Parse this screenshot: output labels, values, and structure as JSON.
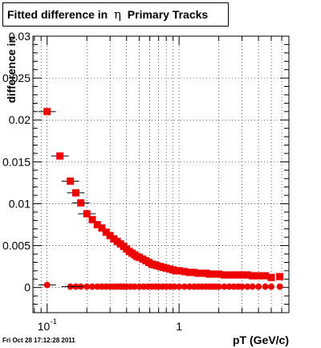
{
  "title": {
    "prefix": "Fitted difference in",
    "symbol": "η",
    "suffix": "Primary Tracks"
  },
  "footer_timestamp": "Fri Oct 28 17:12:28 2011",
  "colors": {
    "marker": "#ee0000",
    "frame": "#000000",
    "grid": "#000000"
  },
  "chart_data": {
    "type": "scatter",
    "xscale": "log",
    "xlim": [
      0.078,
      6.8
    ],
    "ylim": [
      -0.003,
      0.03
    ],
    "xlabel": "pT (GeV/c)",
    "ylabel": "difference in",
    "grid": true,
    "x_ticks": [
      {
        "value": 0.1,
        "base": "10",
        "exp": "-1"
      },
      {
        "value": 1,
        "label": "1"
      }
    ],
    "y_ticks": [
      {
        "value": 0,
        "label": "0"
      },
      {
        "value": 0.005,
        "label": "0.005"
      },
      {
        "value": 0.01,
        "label": "0.01"
      },
      {
        "value": 0.015,
        "label": "0.015"
      },
      {
        "value": 0.02,
        "label": "0.02"
      },
      {
        "value": 0.025,
        "label": "0.025"
      },
      {
        "value": 0.03,
        "label": "0.03"
      }
    ],
    "series": [
      {
        "marker": "square",
        "x": [
          0.1,
          0.125,
          0.15,
          0.165,
          0.18,
          0.2,
          0.22,
          0.24,
          0.26,
          0.28,
          0.3,
          0.32,
          0.34,
          0.36,
          0.38,
          0.4,
          0.42,
          0.44,
          0.46,
          0.48,
          0.5,
          0.53,
          0.56,
          0.59,
          0.62,
          0.65,
          0.68,
          0.72,
          0.76,
          0.8,
          0.85,
          0.9,
          0.95,
          1.0,
          1.1,
          1.2,
          1.3,
          1.4,
          1.5,
          1.6,
          1.7,
          1.8,
          1.9,
          2.0,
          2.2,
          2.4,
          2.6,
          2.8,
          3.0,
          3.3,
          3.6,
          4.0,
          4.5,
          5.0,
          5.8
        ],
        "y": [
          0.021,
          0.0157,
          0.0127,
          0.0113,
          0.0101,
          0.0088,
          0.0081,
          0.0075,
          0.0071,
          0.0066,
          0.0062,
          0.0058,
          0.0055,
          0.0052,
          0.0049,
          0.0046,
          0.0043,
          0.0041,
          0.0039,
          0.0037,
          0.0036,
          0.0034,
          0.0032,
          0.003,
          0.0028,
          0.0027,
          0.0026,
          0.0025,
          0.0024,
          0.0023,
          0.0022,
          0.0021,
          0.002,
          0.002,
          0.0019,
          0.0018,
          0.0018,
          0.0017,
          0.0017,
          0.0017,
          0.0016,
          0.0016,
          0.0016,
          0.0016,
          0.0015,
          0.0015,
          0.0015,
          0.0015,
          0.0015,
          0.0015,
          0.0014,
          0.0014,
          0.0014,
          0.0012,
          0.0013
        ]
      },
      {
        "marker": "circle",
        "x": [
          0.1,
          0.15,
          0.165,
          0.18,
          0.2,
          0.22,
          0.24,
          0.26,
          0.28,
          0.3,
          0.32,
          0.34,
          0.36,
          0.38,
          0.4,
          0.43,
          0.46,
          0.5,
          0.54,
          0.58,
          0.62,
          0.66,
          0.7,
          0.75,
          0.8,
          0.86,
          0.92,
          1.0,
          1.1,
          1.2,
          1.3,
          1.4,
          1.5,
          1.6,
          1.7,
          1.8,
          1.9,
          2.0,
          2.2,
          2.4,
          2.6,
          2.8,
          3.0,
          3.3,
          3.6,
          4.0,
          4.5,
          5.0,
          5.8
        ],
        "y": [
          0.0003,
          0.0001,
          0.0001,
          0.0001,
          0.0001,
          0.0001,
          0.0001,
          0.0001,
          0.0001,
          0.0001,
          0.0001,
          0.0001,
          0.0001,
          0.0001,
          0.0001,
          0.0001,
          0.0001,
          0.0001,
          0.0001,
          0.0001,
          0.0001,
          0.0001,
          0.0001,
          0.0001,
          0.0001,
          0.0001,
          0.0001,
          0.0001,
          0.0001,
          0.0001,
          0.0001,
          0.0001,
          0.0001,
          0.0001,
          0.0001,
          0.0001,
          0.0001,
          0.0001,
          0.0001,
          0.0001,
          0.0001,
          0.0001,
          0.0001,
          0.0001,
          0.0001,
          0.0001,
          0.0001,
          0.0001,
          0.0001
        ]
      }
    ]
  }
}
